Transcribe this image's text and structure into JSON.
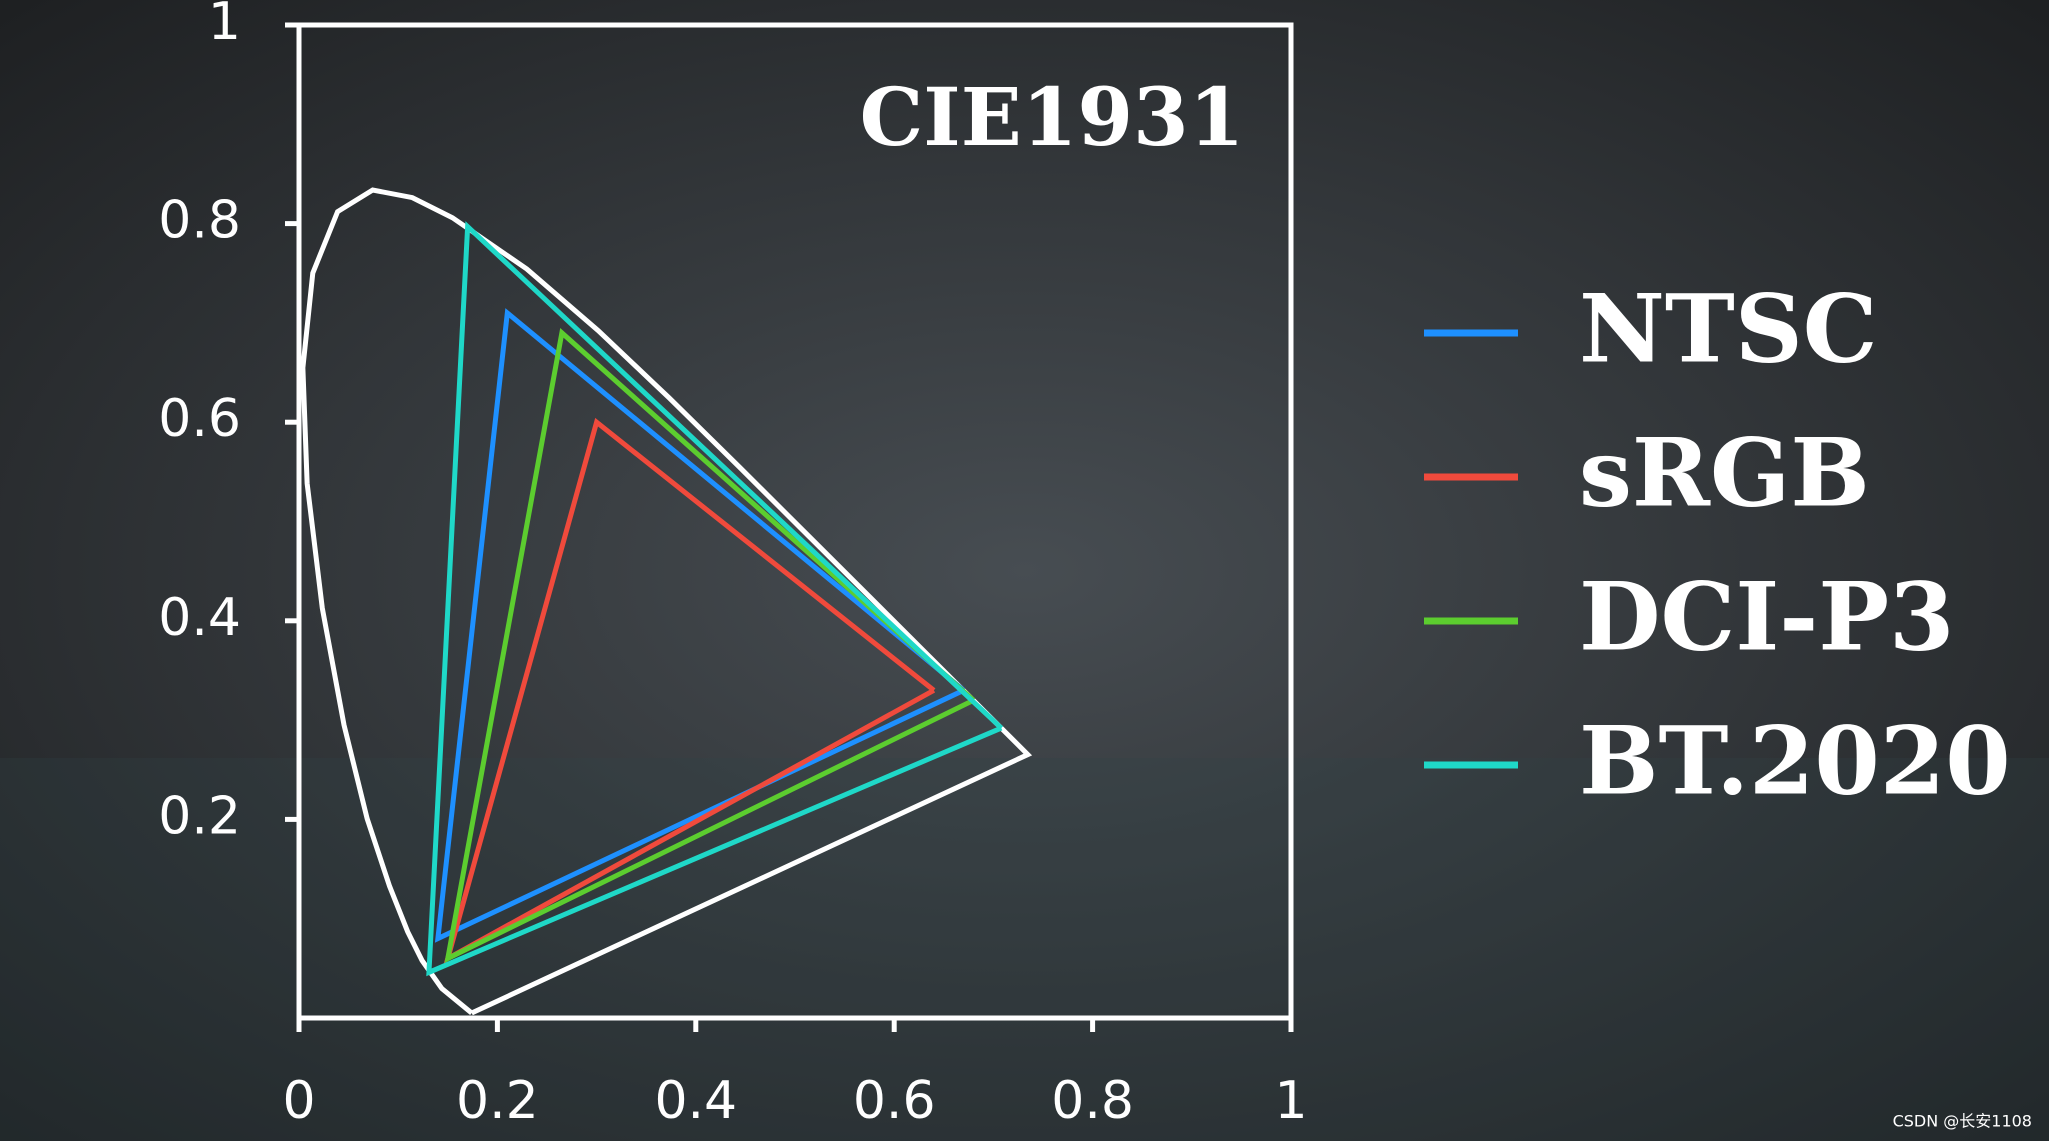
{
  "chart_data": {
    "type": "line",
    "title": "CIE1931",
    "xlim": [
      0,
      1
    ],
    "ylim": [
      0,
      1
    ],
    "xticks": [
      0,
      0.2,
      0.4,
      0.6,
      0.8,
      1
    ],
    "yticks": [
      0.2,
      0.4,
      0.6,
      0.8,
      1
    ],
    "legend": "right",
    "series": [
      {
        "color": "#ffffff",
        "x": [
          0.1741,
          0.144,
          0.1241,
          0.1096,
          0.0913,
          0.0687,
          0.0454,
          0.0235,
          0.0082,
          0.0039,
          0.0139,
          0.0389,
          0.0743,
          0.1142,
          0.1547,
          0.2296,
          0.3016,
          0.3731,
          0.4441,
          0.5125,
          0.5752,
          0.627,
          0.6915,
          0.7347,
          0.1741
        ],
        "values": [
          0.005,
          0.0297,
          0.0578,
          0.0868,
          0.1327,
          0.2007,
          0.295,
          0.4127,
          0.5384,
          0.6548,
          0.7502,
          0.812,
          0.8338,
          0.8262,
          0.8059,
          0.7543,
          0.6923,
          0.6245,
          0.5547,
          0.4866,
          0.4242,
          0.3725,
          0.3083,
          0.2653,
          0.005
        ]
      },
      {
        "name": "NTSC",
        "color": "#1e90ff",
        "x": [
          0.67,
          0.21,
          0.14,
          0.67
        ],
        "values": [
          0.33,
          0.71,
          0.08,
          0.33
        ]
      },
      {
        "name": "sRGB",
        "color": "#f04a3c",
        "x": [
          0.64,
          0.3,
          0.15,
          0.64
        ],
        "values": [
          0.33,
          0.6,
          0.06,
          0.33
        ]
      },
      {
        "name": "DCI-P3",
        "color": "#5ccd2f",
        "x": [
          0.68,
          0.265,
          0.15,
          0.68
        ],
        "values": [
          0.32,
          0.69,
          0.06,
          0.32
        ]
      },
      {
        "name": "BT.2020",
        "color": "#1fd8c8",
        "x": [
          0.708,
          0.17,
          0.131,
          0.708
        ],
        "values": [
          0.292,
          0.797,
          0.046,
          0.292
        ]
      }
    ]
  },
  "watermark": "CSDN @长安1108"
}
